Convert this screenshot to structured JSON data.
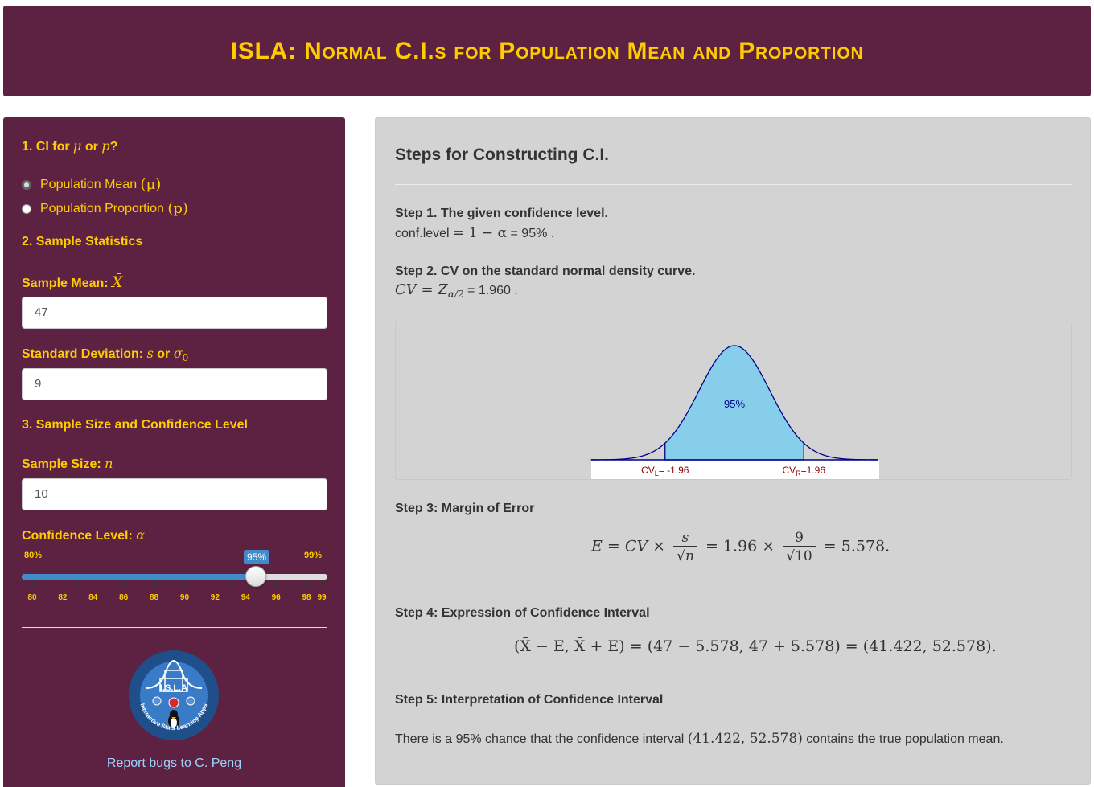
{
  "header": {
    "title": "ISLA: Normal C.I.s for Population Mean and Proportion"
  },
  "sidebar": {
    "sec1_title_prefix": "1. CI for",
    "sec1_mu": "μ",
    "sec1_or": "or",
    "sec1_p": "p",
    "sec1_q": "?",
    "radio_mean_label": "Population Mean",
    "radio_mean_sym": "(μ)",
    "radio_prop_label": "Population Proportion",
    "radio_prop_sym": "(p)",
    "selected_option": "Population Mean",
    "sec2_title": "2. Sample Statistics",
    "mean_label": "Sample Mean:",
    "mean_sym": "X̄",
    "mean_value": "47",
    "sd_label": "Standard Deviation:",
    "sd_sym_s": "s",
    "sd_or": "or",
    "sd_sym_sigma": "σ",
    "sd_sym_sub": "0",
    "sd_value": "9",
    "sec3_title": "3. Sample Size and Confidence Level",
    "n_label": "Sample Size:",
    "n_sym": "n",
    "n_value": "10",
    "conf_label": "Confidence Level:",
    "conf_sym": "α",
    "slider": {
      "min": 80,
      "max": 99,
      "value": 95,
      "min_label": "80%",
      "max_label": "99%",
      "value_label": "95%",
      "tick_labels": [
        "80",
        "82",
        "84",
        "86",
        "88",
        "90",
        "92",
        "94",
        "96",
        "98",
        "99"
      ]
    },
    "report_link": "Report bugs to C. Peng",
    "logo": {
      "name": "I.S.L.A",
      "ring_text": "Interactive Stats Learning Apps"
    }
  },
  "main": {
    "title": "Steps for Constructing C.I.",
    "step1_title": "Step 1. The given confidence level.",
    "step1_prefix": "conf.level",
    "step1_eq": "= 1 − α",
    "step1_value": "= 95% .",
    "step2_title": "Step 2. CV on the standard normal density curve.",
    "step2_cv": "CV = Z",
    "step2_sub": "α/2",
    "step2_value": "= 1.960 .",
    "plot": {
      "center_label": "95%",
      "cvl_label": "CV",
      "cvl_sub": "L",
      "cvl_value": "= -1.96",
      "cvr_label": "CV",
      "cvr_sub": "R",
      "cvr_value": "=1.96",
      "fill_color": "#87ceeb",
      "label_color": "#8b0000",
      "center_color": "#00008b"
    },
    "step3_title": "Step 3: Margin of Error",
    "step3_lhs": "E = CV ×",
    "step3_s": "s",
    "step3_sqrt_n": "√n",
    "step3_mid": "= 1.96 ×",
    "step3_num": "9",
    "step3_den": "√10",
    "step3_result": "= 5.578.",
    "step4_title": "Step 4: Expression of Confidence Interval",
    "step4_formula": "(X̄ − E, X̄ + E) = (47 − 5.578, 47 + 5.578) = (41.422, 52.578).",
    "step5_title": "Step 5: Interpretation of Confidence Interval",
    "step5_pre": "There is a 95% chance that the confidence interval",
    "step5_interval": "(41.422, 52.578)",
    "step5_post": "contains the true population mean."
  }
}
